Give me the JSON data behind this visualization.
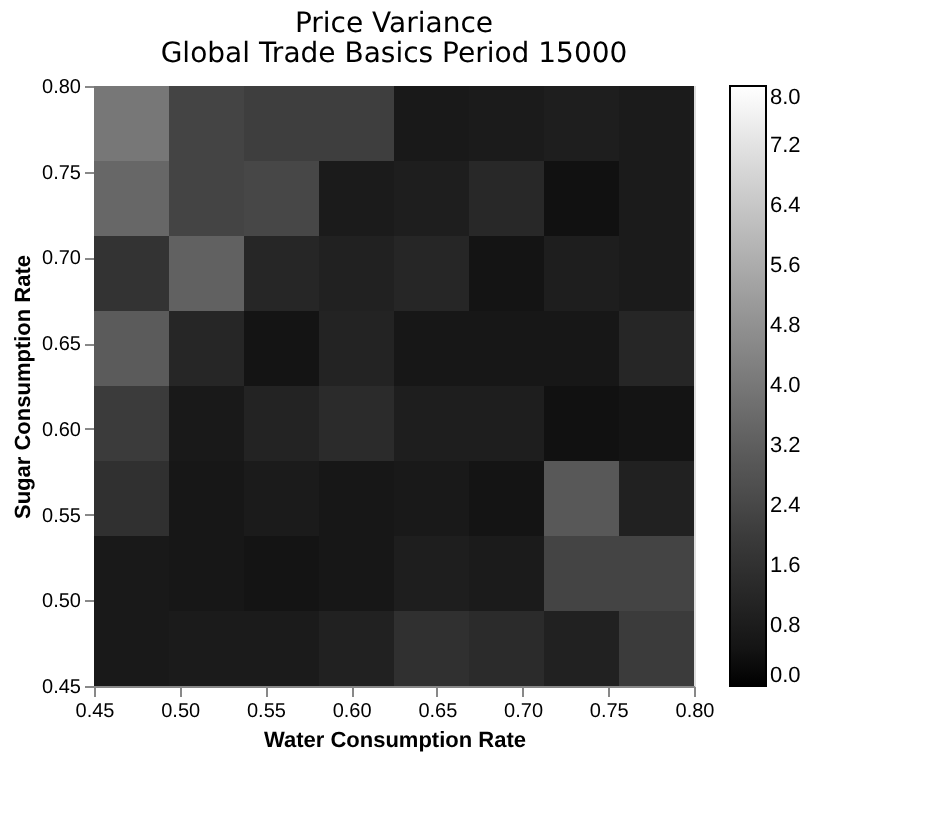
{
  "chart_data": {
    "type": "heatmap",
    "title": "Price Variance",
    "subtitle": "Global Trade Basics Period 15000",
    "xlabel": "Water Consumption Rate",
    "ylabel": "Sugar Consumption Rate",
    "x": [
      0.471875,
      0.515625,
      0.559375,
      0.603125,
      0.646875,
      0.690625,
      0.734375,
      0.778125
    ],
    "y": [
      0.778125,
      0.734375,
      0.690625,
      0.646875,
      0.603125,
      0.559375,
      0.515625,
      0.471875
    ],
    "cells": [
      [
        4.0,
        2.3,
        2.1,
        2.1,
        0.7,
        0.8,
        0.9,
        0.8
      ],
      [
        3.5,
        2.3,
        2.4,
        0.8,
        0.9,
        1.3,
        0.4,
        0.8
      ],
      [
        1.7,
        3.3,
        1.2,
        1.0,
        1.2,
        0.5,
        0.9,
        0.8
      ],
      [
        3.1,
        1.2,
        0.5,
        1.1,
        0.6,
        0.6,
        0.6,
        1.2
      ],
      [
        2.0,
        0.7,
        1.1,
        1.4,
        0.9,
        0.9,
        0.4,
        0.5
      ],
      [
        1.6,
        0.6,
        0.8,
        0.6,
        0.7,
        0.5,
        3.0,
        1.0
      ],
      [
        0.7,
        0.6,
        0.5,
        0.6,
        0.9,
        0.8,
        2.3,
        2.3
      ],
      [
        0.7,
        0.8,
        0.8,
        1.0,
        1.6,
        1.4,
        1.0,
        2.0
      ]
    ],
    "xlim": [
      0.45,
      0.8
    ],
    "xticks": [
      0.45,
      {
        "value": 0.5,
        "label": "0.50"
      },
      0.55,
      {
        "value": 0.6,
        "label": "0.60"
      },
      0.65,
      {
        "value": 0.7,
        "label": "0.70"
      },
      0.75,
      {
        "value": 0.8,
        "label": "0.80"
      }
    ],
    "ylim": [
      0.45,
      0.8
    ],
    "yticks": [
      0.45,
      {
        "value": 0.5,
        "label": "0.50"
      },
      0.55,
      {
        "value": 0.6,
        "label": "0.60"
      },
      0.65,
      {
        "value": 0.7,
        "label": "0.70"
      },
      0.75,
      {
        "value": 0.8,
        "label": "0.80"
      }
    ],
    "clim": [
      0.0,
      8.0
    ],
    "cticks": [
      {
        "value": 0.0,
        "label": "0.0"
      },
      0.8,
      1.6,
      2.4,
      3.2,
      {
        "value": 4.0,
        "label": "4.0"
      },
      4.8,
      5.6,
      6.4,
      7.2,
      {
        "value": 8.0,
        "label": "8.0"
      }
    ]
  }
}
